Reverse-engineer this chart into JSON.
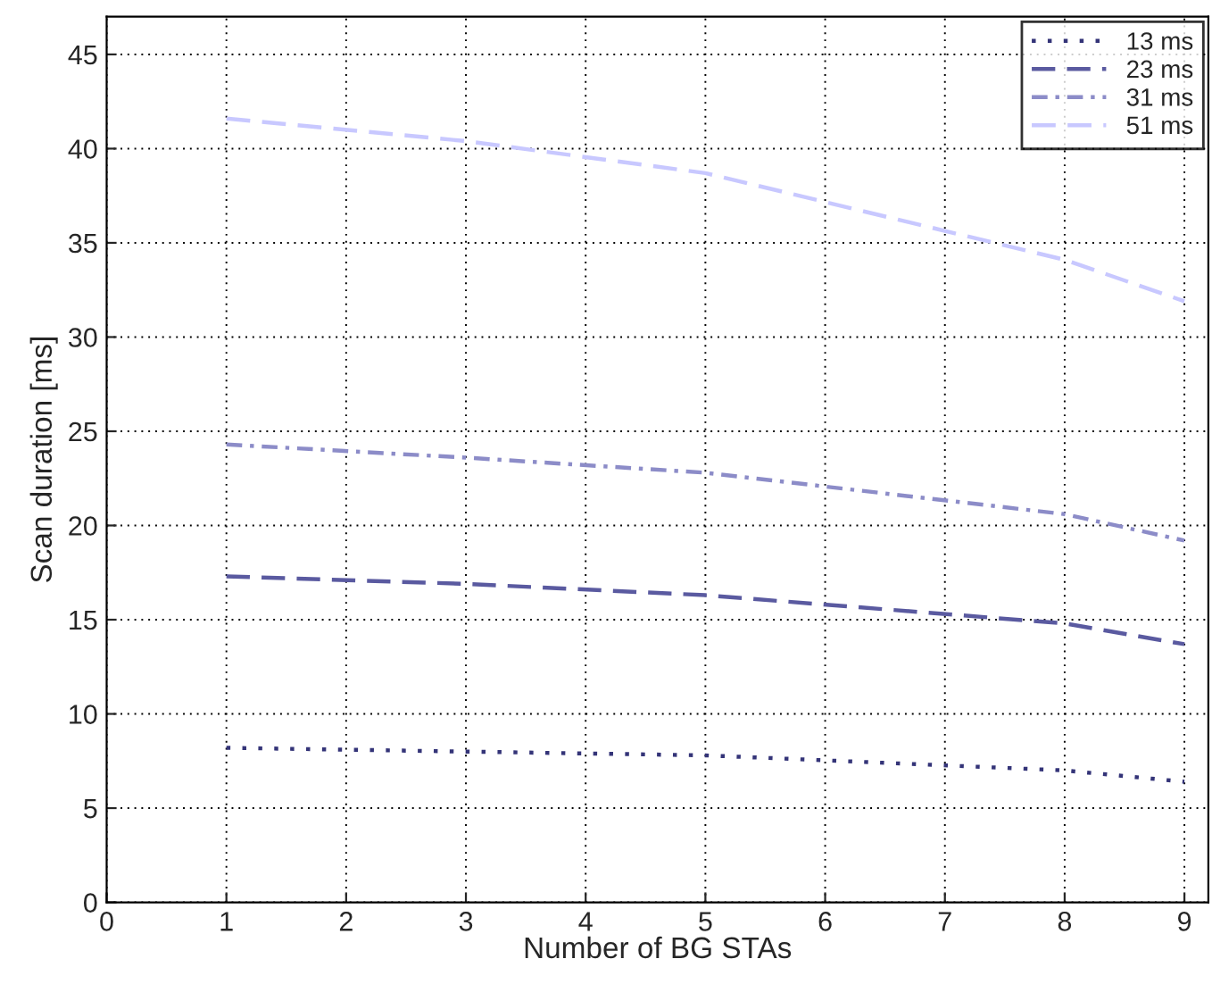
{
  "chart_data": {
    "type": "line",
    "xlabel": "Number of BG STAs",
    "ylabel": "Scan duration [ms]",
    "x": [
      1,
      3,
      5,
      8,
      9
    ],
    "series": [
      {
        "name": "13 ms",
        "color": "#343478",
        "line_style": "dotted",
        "values": [
          8.2,
          8.0,
          7.8,
          7.0,
          6.4
        ]
      },
      {
        "name": "23 ms",
        "color": "#5a5aa0",
        "line_style": "dashed",
        "values": [
          17.3,
          16.9,
          16.3,
          14.8,
          13.7
        ]
      },
      {
        "name": "31 ms",
        "color": "#8c8cc8",
        "line_style": "dashdot",
        "values": [
          24.3,
          23.6,
          22.8,
          20.6,
          19.2
        ]
      },
      {
        "name": "51 ms",
        "color": "#c8c8ff",
        "line_style": "dashed",
        "values": [
          41.6,
          40.4,
          38.7,
          34.1,
          31.9
        ]
      }
    ],
    "xlim": [
      0,
      9.2
    ],
    "xticks": [
      0,
      1,
      2,
      3,
      4,
      5,
      6,
      7,
      8,
      9
    ],
    "ylim": [
      0,
      47
    ],
    "yticks": [
      0,
      5,
      10,
      15,
      20,
      25,
      30,
      35,
      40,
      45
    ],
    "grid": true,
    "legend": "top right",
    "marker": "none"
  }
}
